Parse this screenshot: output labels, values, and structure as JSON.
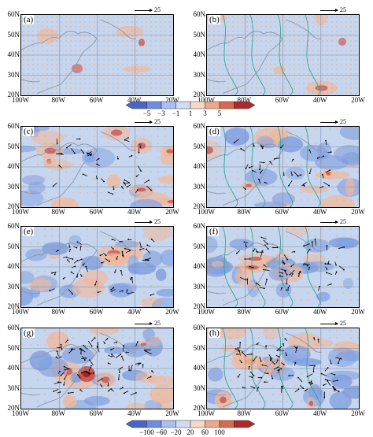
{
  "reference_vector": "25",
  "panels": [
    {
      "label": "(a)",
      "lat_ticks": [
        "60N",
        "50N",
        "40N",
        "30N",
        "20N"
      ],
      "lon_ticks": [
        "100W",
        "80W",
        "60W",
        "40W",
        "20W"
      ]
    },
    {
      "label": "(b)",
      "lat_ticks": [
        "60N",
        "50N",
        "40N",
        "30N",
        "20N"
      ],
      "lon_ticks": [
        "100W",
        "80W",
        "60W",
        "40W",
        "20W"
      ]
    },
    {
      "label": "(c)",
      "lat_ticks": [
        "60N",
        "50N",
        "40N",
        "30N",
        "20N"
      ],
      "lon_ticks": [
        "100W",
        "80W",
        "60W",
        "40W",
        "20W"
      ]
    },
    {
      "label": "(d)",
      "lat_ticks": [
        "60N",
        "50N",
        "40N",
        "30N",
        "20N"
      ],
      "lon_ticks": [
        "100W",
        "80W",
        "60W",
        "40W",
        "20W"
      ]
    },
    {
      "label": "(e)",
      "lat_ticks": [
        "60N",
        "50N",
        "40N",
        "30N",
        "20N"
      ],
      "lon_ticks": [
        "100W",
        "80W",
        "60W",
        "40W",
        "20W"
      ]
    },
    {
      "label": "(f)",
      "lat_ticks": [
        "60N",
        "50N",
        "40N",
        "30N",
        "20N"
      ],
      "lon_ticks": [
        "100W",
        "80W",
        "60W",
        "40W",
        "20W"
      ]
    },
    {
      "label": "(g)",
      "lat_ticks": [
        "60N",
        "50N",
        "40N",
        "30N",
        "20N"
      ],
      "lon_ticks": [
        "100W",
        "80W",
        "60W",
        "40W",
        "20W"
      ]
    },
    {
      "label": "(h)",
      "lat_ticks": [
        "60N",
        "50N",
        "40N",
        "30N",
        "20N"
      ],
      "lon_ticks": [
        "100W",
        "80W",
        "60W",
        "40W",
        "20W"
      ]
    }
  ],
  "colorbar_top": {
    "labels": [
      "−5",
      "−3",
      "−1",
      "1",
      "3",
      "5"
    ],
    "colors": [
      "#4a64c8",
      "#6f8de0",
      "#a9bff0",
      "#d0dcf4",
      "#f4d9c8",
      "#eba88a",
      "#d66a4f",
      "#b0282a"
    ]
  },
  "colorbar_bottom": {
    "labels": [
      "−100",
      "−60",
      "−20",
      "20",
      "60",
      "100"
    ],
    "colors": [
      "#4a64c8",
      "#6f8de0",
      "#a9bff0",
      "#d0dcf4",
      "#f4d9c8",
      "#eba88a",
      "#d66a4f",
      "#b0282a"
    ]
  },
  "palette": {
    "background": "#c7d6ef",
    "warm": "#efb99c",
    "hot": "#c9453a",
    "cool": "#7f9fe0",
    "contour": "#3aa394",
    "grid": "#7f8fa8",
    "coast": "#8c97ad",
    "stipple": "#e8a57a"
  }
}
